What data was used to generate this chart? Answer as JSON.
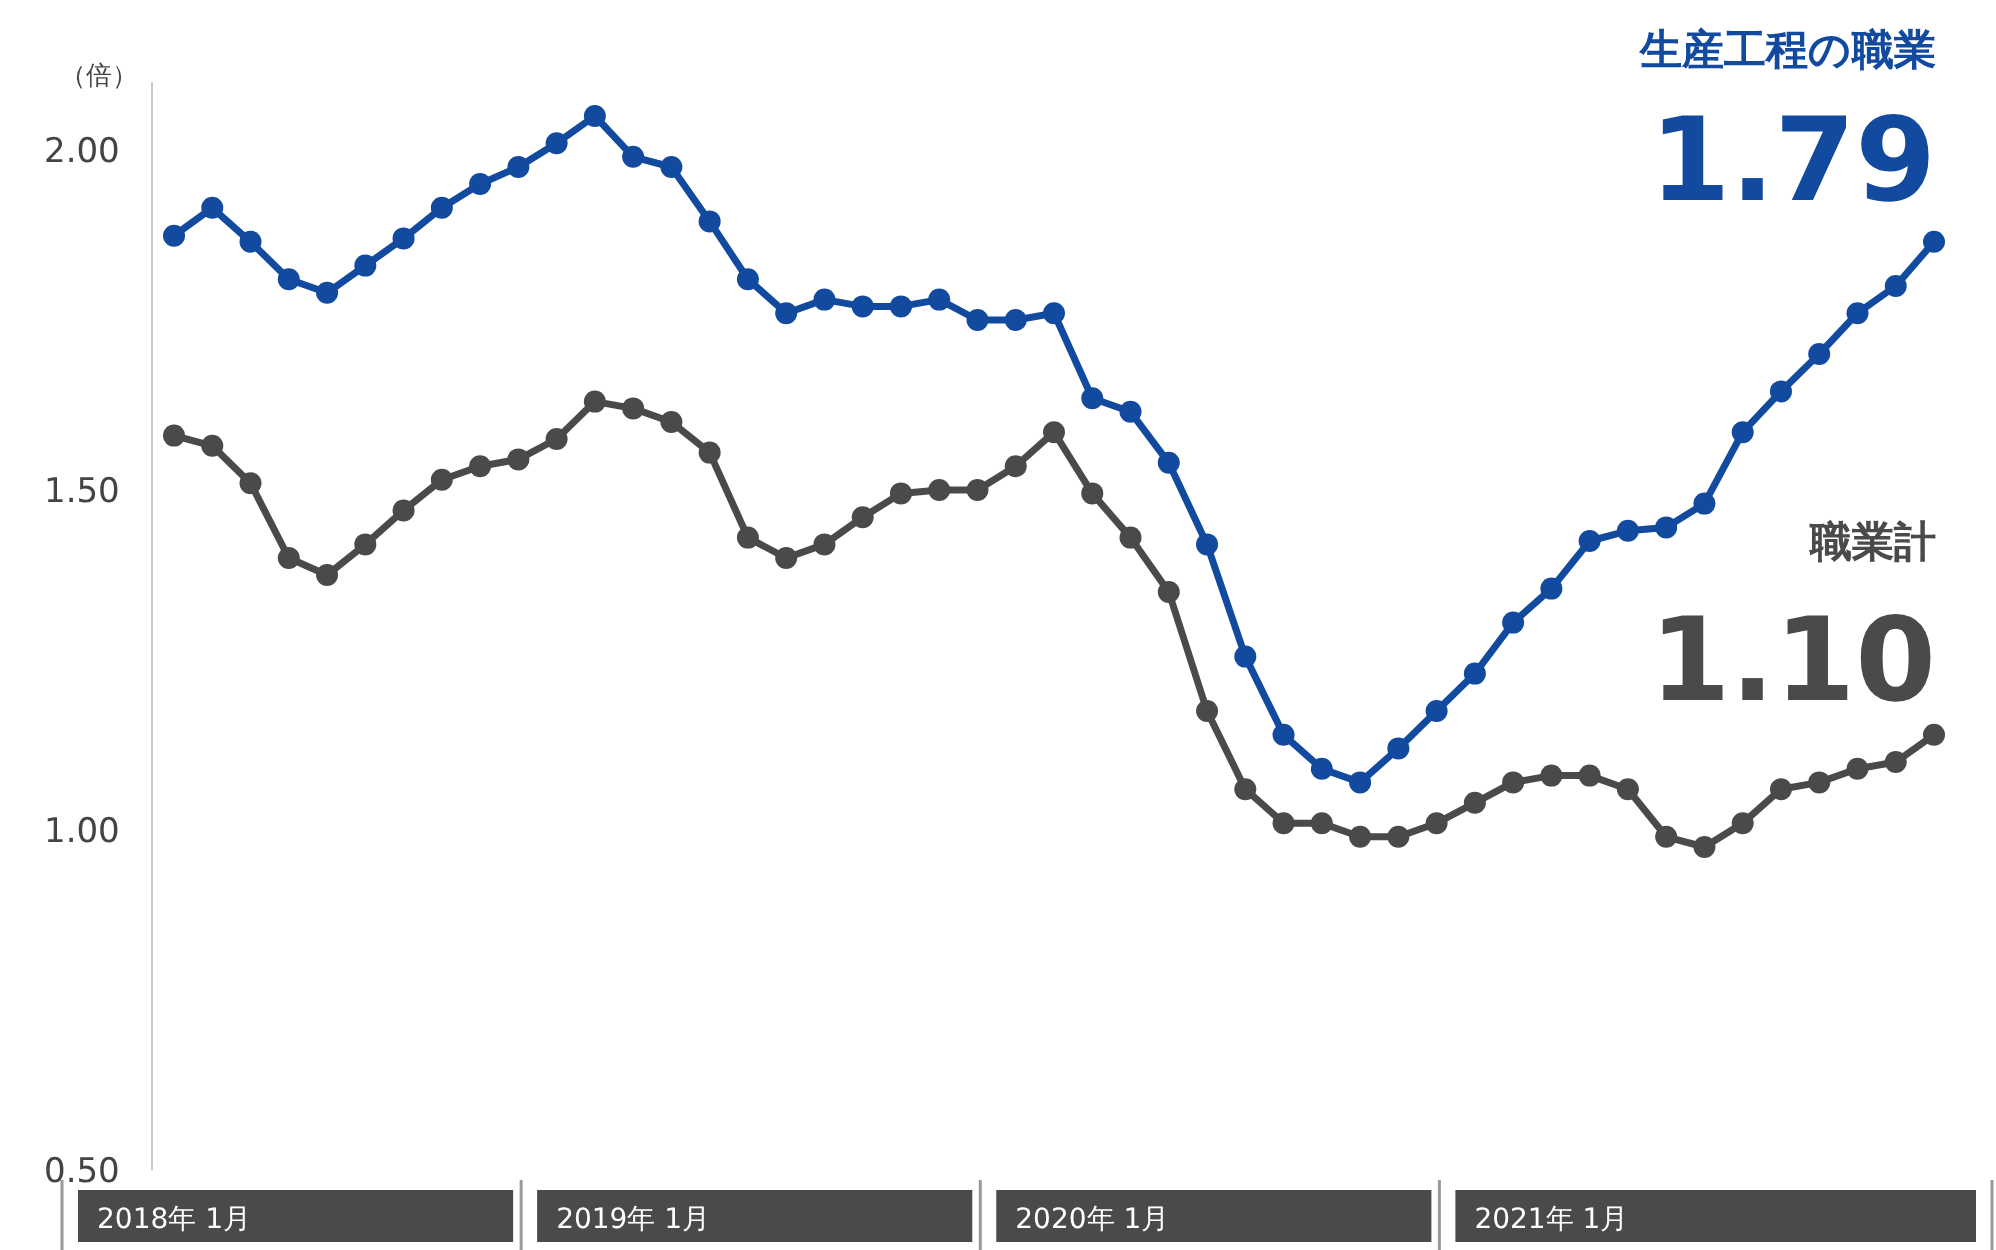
{
  "chart_data": {
    "type": "line",
    "ylabel": "（倍）",
    "ylim": [
      0.5,
      2.1
    ],
    "yticks": [
      {
        "value": 0.5,
        "label": "0.50"
      },
      {
        "value": 1.0,
        "label": "1.00"
      },
      {
        "value": 1.5,
        "label": "1.50"
      },
      {
        "value": 2.0,
        "label": "2.00"
      }
    ],
    "categories": [
      "2018年 1月",
      null,
      null,
      null,
      null,
      null,
      null,
      null,
      null,
      null,
      null,
      null,
      "2019年 1月",
      null,
      null,
      null,
      null,
      null,
      null,
      null,
      null,
      null,
      null,
      null,
      "2020年 1月",
      null,
      null,
      null,
      null,
      null,
      null,
      null,
      null,
      null,
      null,
      null,
      "2021年 1月",
      null,
      null,
      null,
      null,
      null,
      null,
      null,
      null,
      null,
      null
    ],
    "series": [
      {
        "name": "生産工程の職業",
        "color": "#114a9f",
        "values": [
          1.874,
          1.915,
          1.865,
          1.81,
          1.79,
          1.83,
          1.87,
          1.915,
          1.95,
          1.975,
          2.01,
          2.05,
          1.99,
          1.975,
          1.895,
          1.81,
          1.76,
          1.78,
          1.77,
          1.77,
          1.78,
          1.75,
          1.75,
          1.76,
          1.635,
          1.615,
          1.54,
          1.42,
          1.255,
          1.14,
          1.09,
          1.07,
          1.12,
          1.175,
          1.23,
          1.305,
          1.355,
          1.425,
          1.44,
          1.445,
          1.48,
          1.585,
          1.645,
          1.7,
          1.76,
          1.8,
          1.865
        ]
      },
      {
        "name": "職業計",
        "color": "#4a4a4a",
        "values": [
          1.58,
          1.565,
          1.51,
          1.4,
          1.375,
          1.42,
          1.47,
          1.515,
          1.535,
          1.545,
          1.575,
          1.63,
          1.62,
          1.6,
          1.555,
          1.43,
          1.4,
          1.42,
          1.46,
          1.495,
          1.5,
          1.5,
          1.535,
          1.585,
          1.495,
          1.43,
          1.35,
          1.175,
          1.06,
          1.01,
          1.01,
          0.99,
          0.99,
          1.01,
          1.04,
          1.07,
          1.08,
          1.08,
          1.06,
          0.99,
          0.975,
          1.01,
          1.06,
          1.07,
          1.09,
          1.1,
          1.14
        ]
      }
    ],
    "annotations": [
      "1.79",
      "1.10"
    ],
    "marker": "circle",
    "line_style": "solid",
    "grid": false,
    "legend": false
  }
}
